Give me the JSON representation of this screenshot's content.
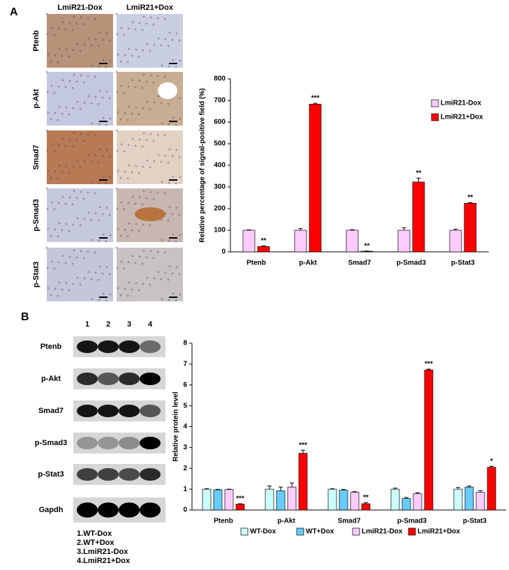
{
  "panel_labels": [
    "A",
    "B"
  ],
  "ihc": {
    "columns": [
      "LmiR21-Dox",
      "LmiR21+Dox"
    ],
    "rows": [
      "Ptenb",
      "p-Akt",
      "Smad7",
      "p-Smad3",
      "p-Stat3"
    ]
  },
  "western": {
    "lanes": [
      "1",
      "2",
      "3",
      "4"
    ],
    "rows": [
      "Ptenb",
      "p-Akt",
      "Smad7",
      "p-Smad3",
      "p-Stat3",
      "Gapdh"
    ],
    "key": [
      "1.WT-Dox",
      "2.WT+Dox",
      "3.LmiR21-Dox",
      "4.LmiR21+Dox"
    ]
  },
  "chart_data": [
    {
      "type": "bar",
      "ylabel": "Relative percentage of signal-positive field (%)",
      "categories": [
        "Ptenb",
        "p-Akt",
        "Smad7",
        "p-Smad3",
        "p-Stat3"
      ],
      "series": [
        {
          "name": "LmiR21-Dox",
          "color": "#ffccff",
          "values": [
            100,
            100,
            100,
            100,
            100
          ],
          "errors": [
            2,
            8,
            3,
            12,
            5
          ]
        },
        {
          "name": "LmiR21+Dox",
          "color": "#ff0000",
          "values": [
            25,
            683,
            3,
            323,
            225
          ],
          "errors": [
            3,
            4,
            1,
            18,
            3
          ],
          "significance": [
            "**",
            "***",
            "**",
            "**",
            "**"
          ]
        }
      ],
      "ylim": [
        0,
        800
      ],
      "yticks": [
        0,
        100,
        200,
        300,
        400,
        500,
        600,
        700,
        800
      ],
      "legend": "upper right"
    },
    {
      "type": "bar",
      "ylabel": "Relative protein level",
      "categories": [
        "Ptenb",
        "p-Akt",
        "Smad7",
        "p-Smad3",
        "p-Stat3"
      ],
      "series": [
        {
          "name": "WT-Dox",
          "color": "#ccffff",
          "values": [
            1,
            1,
            1,
            1,
            1
          ],
          "errors": [
            0.02,
            0.15,
            0.02,
            0.05,
            0.08
          ]
        },
        {
          "name": "WT+Dox",
          "color": "#66ccff",
          "values": [
            0.97,
            0.92,
            0.95,
            0.55,
            1.1
          ],
          "errors": [
            0.02,
            0.18,
            0.03,
            0.05,
            0.05
          ]
        },
        {
          "name": "LmiR21-Dox",
          "color": "#ffccff",
          "values": [
            0.98,
            1.1,
            0.85,
            0.78,
            0.85
          ],
          "errors": [
            0.02,
            0.2,
            0.03,
            0.05,
            0.08
          ]
        },
        {
          "name": "LmiR21+Dox",
          "color": "#ff0000",
          "values": [
            0.28,
            2.72,
            0.3,
            6.72,
            2.05
          ],
          "errors": [
            0.02,
            0.15,
            0.05,
            0.04,
            0.05
          ],
          "significance": [
            "***",
            "***",
            "**",
            "***",
            "*"
          ]
        }
      ],
      "ylim": [
        0,
        8
      ],
      "yticks": [
        0,
        1,
        2,
        3,
        4,
        5,
        6,
        7,
        8
      ],
      "legend": "lower center"
    }
  ]
}
